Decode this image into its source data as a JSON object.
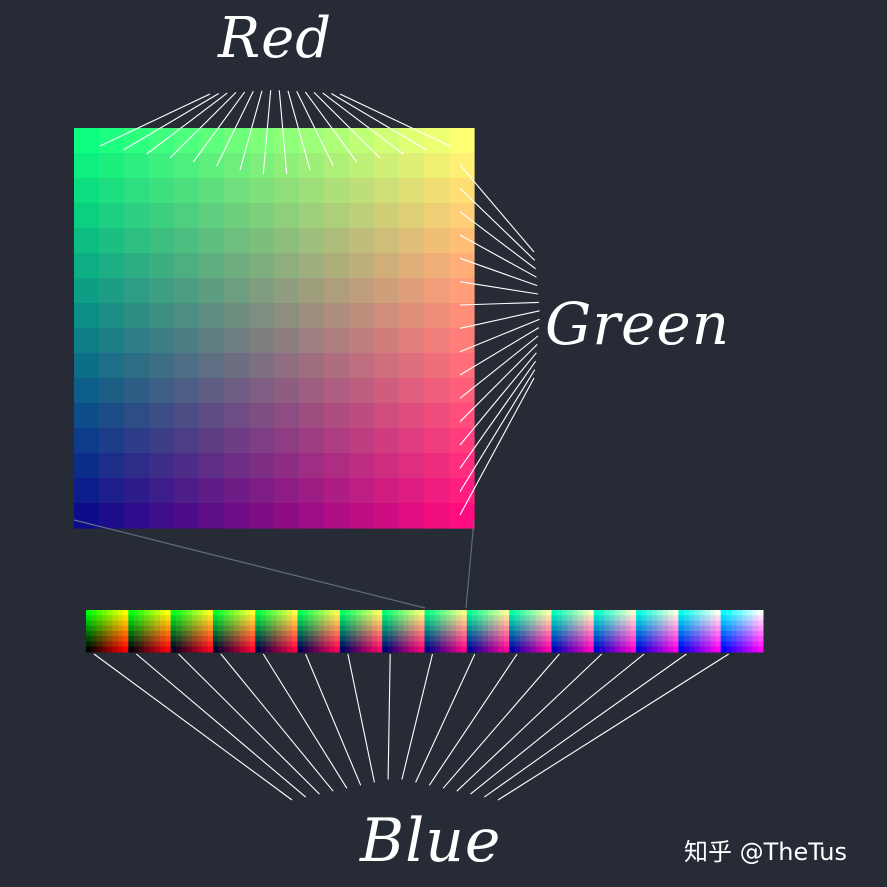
{
  "labels": {
    "red": "Red",
    "green": "Green",
    "blue": "Blue"
  },
  "watermark": "知乎 @TheTus",
  "grid": {
    "steps": 16,
    "description_axes": [
      "red",
      "green",
      "blue"
    ]
  },
  "colors": {
    "background": "#262b36",
    "line": "#ffffff",
    "connector": "#5d6e80"
  }
}
